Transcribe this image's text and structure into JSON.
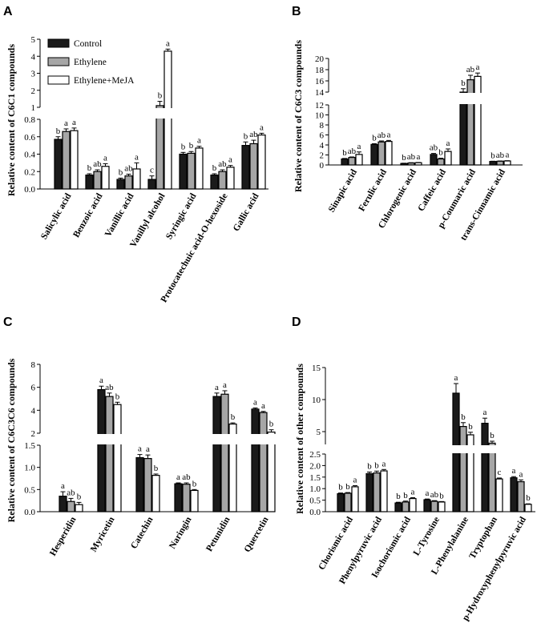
{
  "legend": {
    "entries": [
      "Control",
      "Ethylene",
      "Ethylene+MeJA"
    ],
    "colors": [
      "#1a1a1a",
      "#a6a6a6",
      "#ffffff"
    ]
  },
  "chart_data": [
    {
      "type": "bar",
      "panel_label": "A",
      "ylabel": "Relative content of C6C1 compounds",
      "categories": [
        "Salicylic acid",
        "Benzoic acid",
        "Vanillic acid",
        "Vanillyl alcohol",
        "Syringic acid",
        "Protocatechuic acid-O-hexoside",
        "Gallic acid"
      ],
      "series": [
        {
          "name": "Control",
          "values": [
            0.57,
            0.16,
            0.11,
            0.11,
            0.4,
            0.16,
            0.5
          ],
          "errors": [
            0.03,
            0.015,
            0.015,
            0.04,
            0.02,
            0.015,
            0.04
          ]
        },
        {
          "name": "Ethylene",
          "values": [
            0.66,
            0.2,
            0.15,
            1.1,
            0.41,
            0.2,
            0.52
          ],
          "errors": [
            0.03,
            0.02,
            0.02,
            0.25,
            0.02,
            0.02,
            0.04
          ]
        },
        {
          "name": "Ethylene+MeJA",
          "values": [
            0.67,
            0.26,
            0.23,
            4.3,
            0.47,
            0.25,
            0.62
          ],
          "errors": [
            0.03,
            0.03,
            0.07,
            0.12,
            0.02,
            0.02,
            0.02
          ]
        }
      ],
      "significance": [
        [
          "b",
          "a",
          "a"
        ],
        [
          "b",
          "ab",
          "a"
        ],
        [
          "b",
          "ab",
          "a"
        ],
        [
          "c",
          "b",
          "a"
        ],
        [
          "b",
          "b",
          "a"
        ],
        [
          "b",
          "ab",
          "a"
        ],
        [
          "b",
          "ab",
          "a"
        ]
      ],
      "segments": [
        {
          "range": [
            0,
            0.8
          ],
          "ticks": [
            0.0,
            0.2,
            0.4,
            0.6,
            0.8
          ]
        },
        {
          "range": [
            1,
            5
          ],
          "ticks": [
            1,
            2,
            3,
            4,
            5
          ]
        }
      ]
    },
    {
      "type": "bar",
      "panel_label": "B",
      "ylabel": "Relative content of C6C3 compounds",
      "categories": [
        "Sinapic acid",
        "Ferulic acid",
        "Chlorogenic acid",
        "Caffeic acid",
        "p-Coumaric acid",
        "trans-Cinnamic acid"
      ],
      "series": [
        {
          "name": "Control",
          "values": [
            1.2,
            4.1,
            0.3,
            2.1,
            14.0,
            0.7
          ],
          "errors": [
            0.1,
            0.15,
            0.05,
            0.2,
            0.6,
            0.05
          ]
        },
        {
          "name": "Ethylene",
          "values": [
            1.5,
            4.6,
            0.4,
            1.2,
            16.2,
            0.75
          ],
          "errors": [
            0.1,
            0.2,
            0.05,
            0.15,
            0.8,
            0.05
          ]
        },
        {
          "name": "Ethylene+MeJA",
          "values": [
            2.1,
            4.7,
            0.45,
            2.7,
            16.8,
            0.8
          ],
          "errors": [
            0.5,
            0.2,
            0.05,
            0.5,
            0.6,
            0.05
          ]
        }
      ],
      "significance": [
        [
          "b",
          "ab",
          "a"
        ],
        [
          "b",
          "ab",
          "a"
        ],
        [
          "b",
          "ab",
          "a"
        ],
        [
          "ab",
          "b",
          "a"
        ],
        [
          "b",
          "ab",
          "a"
        ],
        [
          "b",
          "ab",
          "a"
        ]
      ],
      "segments": [
        {
          "range": [
            0,
            12
          ],
          "ticks": [
            0,
            2,
            4,
            6,
            8,
            10,
            12
          ]
        },
        {
          "range": [
            14,
            20
          ],
          "ticks": [
            14,
            16,
            18,
            20
          ]
        }
      ]
    },
    {
      "type": "bar",
      "panel_label": "C",
      "ylabel": "Relative content of C6C3C6 compounds",
      "categories": [
        "Hesperidin",
        "Myricetin",
        "Catechin",
        "Naringin",
        "Petunidin",
        "Quercetin"
      ],
      "series": [
        {
          "name": "Control",
          "values": [
            0.35,
            5.8,
            1.22,
            0.63,
            5.2,
            4.1
          ],
          "errors": [
            0.1,
            0.3,
            0.07,
            0.02,
            0.3,
            0.1
          ]
        },
        {
          "name": "Ethylene",
          "values": [
            0.23,
            5.2,
            1.2,
            0.62,
            5.4,
            3.8
          ],
          "errors": [
            0.07,
            0.3,
            0.08,
            0.03,
            0.3,
            0.1
          ]
        },
        {
          "name": "Ethylene+MeJA",
          "values": [
            0.16,
            4.5,
            0.82,
            0.48,
            2.8,
            2.1
          ],
          "errors": [
            0.05,
            0.2,
            0.03,
            0.02,
            0.1,
            0.2
          ]
        }
      ],
      "significance": [
        [
          "a",
          "ab",
          "b"
        ],
        [
          "a",
          "ab",
          "b"
        ],
        [
          "a",
          "a",
          "b"
        ],
        [
          "a",
          "ab",
          "b"
        ],
        [
          "a",
          "a",
          "b"
        ],
        [
          "a",
          "a",
          "b"
        ]
      ],
      "segments": [
        {
          "range": [
            0,
            1.5
          ],
          "ticks": [
            0.0,
            0.5,
            1.0,
            1.5
          ]
        },
        {
          "range": [
            2,
            8
          ],
          "ticks": [
            2,
            4,
            6,
            8
          ]
        }
      ]
    },
    {
      "type": "bar",
      "panel_label": "D",
      "ylabel": "Relative content of other compounds",
      "categories": [
        "Chorismic acid",
        "Phenylpyruvic acid",
        "Isochorismic acid",
        "L-Tyrosine",
        "L-Phenylalanine",
        "Tryptophan",
        "p-Hydroxyphenylpyruvic acid"
      ],
      "series": [
        {
          "name": "Control",
          "values": [
            0.78,
            1.65,
            0.38,
            0.52,
            11.0,
            6.3,
            1.47
          ],
          "errors": [
            0.03,
            0.07,
            0.03,
            0.03,
            1.5,
            0.8,
            0.05
          ]
        },
        {
          "name": "Ethylene",
          "values": [
            0.8,
            1.68,
            0.42,
            0.45,
            5.8,
            3.2,
            1.3
          ],
          "errors": [
            0.03,
            0.08,
            0.04,
            0.03,
            0.6,
            0.3,
            0.08
          ]
        },
        {
          "name": "Ethylene+MeJA",
          "values": [
            1.08,
            1.77,
            0.57,
            0.42,
            4.5,
            1.42,
            0.32
          ],
          "errors": [
            0.05,
            0.06,
            0.04,
            0.02,
            0.4,
            0.04,
            0.02
          ]
        }
      ],
      "significance": [
        [
          "b",
          "b",
          "a"
        ],
        [
          "b",
          "b",
          "a"
        ],
        [
          "b",
          "b",
          "a"
        ],
        [
          "a",
          "ab",
          "b"
        ],
        [
          "a",
          "b",
          "b"
        ],
        [
          "a",
          "b",
          "c"
        ],
        [
          "a",
          "a",
          "b"
        ]
      ],
      "segments": [
        {
          "range": [
            0,
            2.5
          ],
          "ticks": [
            0.0,
            0.5,
            1.0,
            1.5,
            2.0,
            2.5
          ]
        },
        {
          "range": [
            3,
            15
          ],
          "ticks": [
            5,
            10,
            15
          ]
        }
      ]
    }
  ]
}
